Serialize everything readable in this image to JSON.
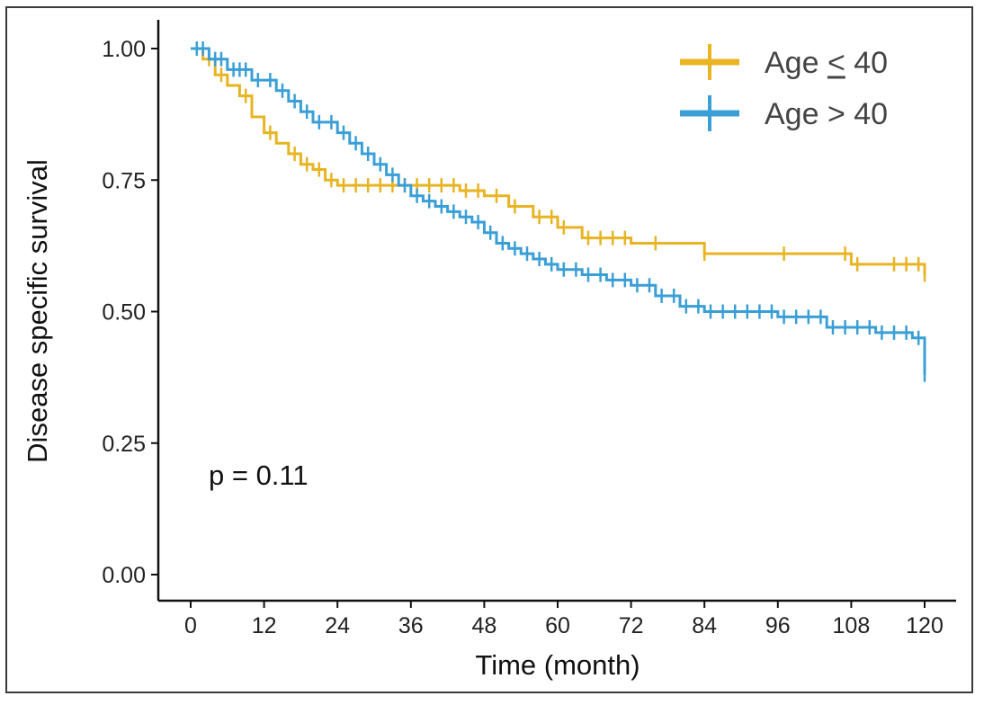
{
  "chart_data": {
    "type": "line",
    "subtype": "kaplan-meier",
    "title": "",
    "xlabel": "Time (month)",
    "ylabel": "Disease specific survival",
    "xlim": [
      0,
      120
    ],
    "ylim": [
      0,
      1
    ],
    "x_ticks": [
      0,
      12,
      24,
      36,
      48,
      60,
      72,
      84,
      96,
      108,
      120
    ],
    "x_tick_labels": [
      "0",
      "12",
      "24",
      "36",
      "48",
      "60",
      "72",
      "84",
      "96",
      "108",
      "120"
    ],
    "y_ticks": [
      0,
      0.25,
      0.5,
      0.75,
      1.0
    ],
    "y_tick_labels": [
      "0.00",
      "0.25",
      "0.50",
      "0.75",
      "1.00"
    ],
    "grid": false,
    "legend_position": "top-right",
    "annotation": "p = 0.11",
    "series": [
      {
        "name": "Age ≤ 40",
        "legend_prefix": "Age ",
        "legend_symbol": "<",
        "legend_suffix": " 40",
        "color": "#e8b422",
        "steps": [
          [
            0,
            1.0
          ],
          [
            2,
            0.98
          ],
          [
            4,
            0.95
          ],
          [
            6,
            0.93
          ],
          [
            8,
            0.91
          ],
          [
            10,
            0.87
          ],
          [
            12,
            0.84
          ],
          [
            14,
            0.82
          ],
          [
            16,
            0.8
          ],
          [
            18,
            0.78
          ],
          [
            20,
            0.77
          ],
          [
            22,
            0.75
          ],
          [
            24,
            0.74
          ],
          [
            44,
            0.73
          ],
          [
            48,
            0.72
          ],
          [
            52,
            0.7
          ],
          [
            56,
            0.68
          ],
          [
            60,
            0.66
          ],
          [
            64,
            0.64
          ],
          [
            72,
            0.63
          ],
          [
            84,
            0.61
          ],
          [
            108,
            0.59
          ],
          [
            119,
            0.59
          ],
          [
            120,
            0.57
          ]
        ],
        "censor_times": [
          3,
          5,
          9,
          13,
          17,
          19,
          21,
          23,
          25,
          27,
          29,
          31,
          33,
          35,
          37,
          39,
          41,
          43,
          45,
          47,
          50,
          53,
          57,
          59,
          61,
          65,
          67,
          69,
          71,
          76,
          84,
          97,
          107,
          109,
          115,
          117,
          119,
          120
        ]
      },
      {
        "name": "Age > 40",
        "legend_prefix": "Age ",
        "legend_symbol": ">",
        "legend_suffix": " 40",
        "color": "#3a9fd6",
        "steps": [
          [
            0,
            1.0
          ],
          [
            3,
            0.98
          ],
          [
            6,
            0.96
          ],
          [
            10,
            0.94
          ],
          [
            14,
            0.92
          ],
          [
            16,
            0.9
          ],
          [
            18,
            0.88
          ],
          [
            20,
            0.86
          ],
          [
            24,
            0.84
          ],
          [
            26,
            0.82
          ],
          [
            28,
            0.8
          ],
          [
            30,
            0.78
          ],
          [
            32,
            0.76
          ],
          [
            34,
            0.74
          ],
          [
            36,
            0.72
          ],
          [
            38,
            0.71
          ],
          [
            40,
            0.7
          ],
          [
            42,
            0.69
          ],
          [
            44,
            0.68
          ],
          [
            46,
            0.67
          ],
          [
            48,
            0.65
          ],
          [
            50,
            0.63
          ],
          [
            52,
            0.62
          ],
          [
            54,
            0.61
          ],
          [
            56,
            0.6
          ],
          [
            58,
            0.59
          ],
          [
            60,
            0.58
          ],
          [
            64,
            0.57
          ],
          [
            68,
            0.56
          ],
          [
            72,
            0.55
          ],
          [
            76,
            0.53
          ],
          [
            80,
            0.51
          ],
          [
            84,
            0.5
          ],
          [
            96,
            0.49
          ],
          [
            104,
            0.47
          ],
          [
            112,
            0.46
          ],
          [
            118,
            0.45
          ],
          [
            120,
            0.44
          ],
          [
            120,
            0.38
          ]
        ],
        "censor_times": [
          1,
          2,
          4,
          5,
          7,
          8,
          9,
          11,
          13,
          15,
          17,
          19,
          21,
          23,
          25,
          27,
          29,
          31,
          33,
          35,
          37,
          39,
          41,
          43,
          45,
          47,
          49,
          51,
          53,
          55,
          57,
          59,
          61,
          63,
          65,
          67,
          69,
          71,
          73,
          75,
          77,
          79,
          81,
          83,
          85,
          87,
          89,
          91,
          93,
          95,
          97,
          99,
          101,
          103,
          105,
          107,
          109,
          111,
          113,
          115,
          117,
          119,
          120
        ]
      }
    ]
  }
}
